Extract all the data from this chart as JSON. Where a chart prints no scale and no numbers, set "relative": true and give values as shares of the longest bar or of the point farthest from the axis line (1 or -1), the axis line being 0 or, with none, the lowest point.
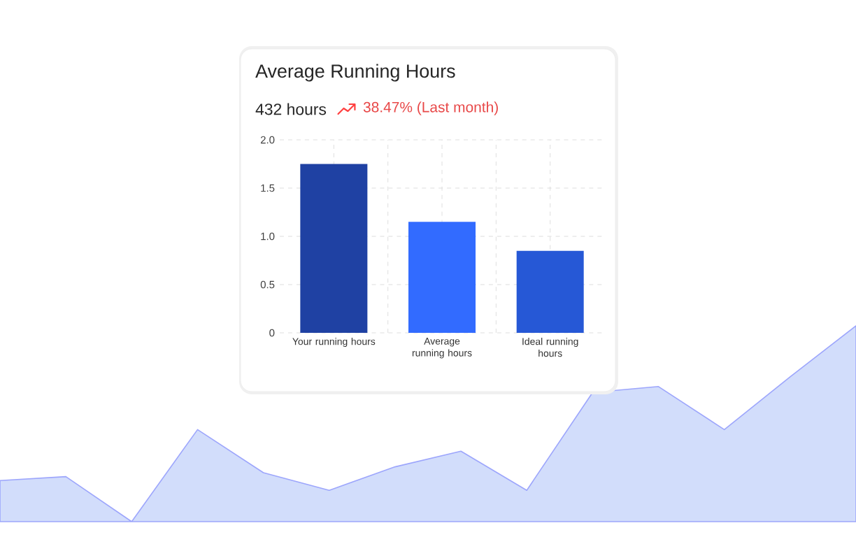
{
  "chart_data": [
    {
      "type": "bar",
      "title": "Average Running Hours",
      "subtitle": "432 hours",
      "annotations": [
        "38.47% (Last month)"
      ],
      "categories": [
        "Your running hours",
        "Average running hours",
        "Ideal running hours"
      ],
      "values": [
        1.75,
        1.15,
        0.85
      ],
      "colors": [
        "#1f41a3",
        "#326bff",
        "#2658d6"
      ],
      "ylim": [
        0,
        2
      ],
      "yticks": [
        0,
        0.5,
        {
          "value": 1,
          "label": "1.0"
        },
        1.5,
        {
          "value": 2,
          "label": "2.0"
        }
      ],
      "grid": true
    },
    {
      "type": "area",
      "relative": true,
      "categories": [
        null,
        null,
        null,
        null,
        null,
        null,
        null,
        null,
        null,
        null,
        null,
        null,
        null,
        null
      ],
      "values": [
        0.21,
        0.23,
        0,
        0.47,
        0.25,
        0.16,
        0.28,
        0.36,
        0.16,
        0.66,
        0.69,
        0.47,
        0.74,
        1
      ],
      "color": "#d2ddfb"
    }
  ]
}
